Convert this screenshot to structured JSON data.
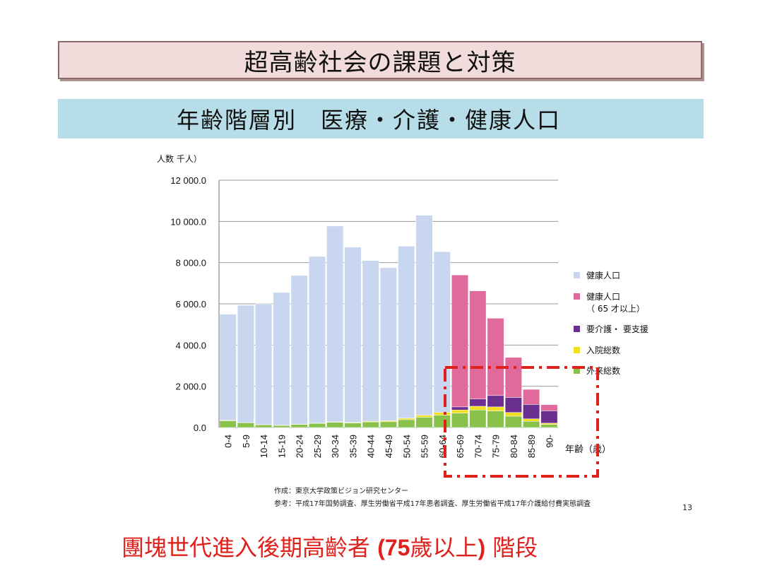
{
  "slide": {
    "title": "超高齢社会の課題と対策",
    "subtitle": "年齢階層別　医療・介護・健康人口",
    "source_line1": "作成：東京大学政策ビジョン研究センター",
    "source_line2": "参考：平成17年国勢調査、厚生労働省平成17年患者調査、厚生労働省平成17年介護給付費実態調査",
    "page_number": "13",
    "caption_pre": "團塊世代進入後期高齡者 ",
    "caption_bold": "(75",
    "caption_mid": "歲以上",
    "caption_bold2": ")",
    "caption_post": " 階段"
  },
  "colors": {
    "healthy": "#c9d6ef",
    "healthy_65": "#e06a9c",
    "care": "#6b2f8f",
    "inpatient": "#f0e020",
    "outpatient": "#88c24a",
    "highlight": "#e0201a"
  },
  "chart_data": {
    "type": "bar",
    "stacked": true,
    "ylabel": "人数 千人）",
    "xlabel": "年齢（歳）",
    "ylim": [
      0,
      12000
    ],
    "yticks": [
      "0.0",
      "2 000.0",
      "4 000.0",
      "6 000.0",
      "8 000.0",
      "10 000.0",
      "12 000.0"
    ],
    "grid": true,
    "legend_position": "right",
    "categories": [
      "0-4",
      "5-9",
      "10-14",
      "15-19",
      "20-24",
      "25-29",
      "30-34",
      "35-39",
      "40-44",
      "45-49",
      "50-54",
      "55-59",
      "60-64",
      "65-69",
      "70-74",
      "75-79",
      "80-84",
      "85-89",
      "90-"
    ],
    "series": [
      {
        "name": "外来総数",
        "color_key": "outpatient",
        "values": [
          330,
          230,
          130,
          100,
          150,
          200,
          250,
          220,
          270,
          280,
          380,
          500,
          600,
          700,
          850,
          800,
          550,
          300,
          150
        ]
      },
      {
        "name": "入院総数",
        "color_key": "inpatient",
        "values": [
          20,
          10,
          10,
          10,
          15,
          20,
          25,
          25,
          35,
          45,
          70,
          100,
          130,
          150,
          180,
          200,
          180,
          120,
          60
        ]
      },
      {
        "name": "要介護・要支援",
        "color_key": "care",
        "values": [
          0,
          0,
          0,
          0,
          0,
          0,
          0,
          0,
          0,
          0,
          0,
          0,
          0,
          150,
          350,
          550,
          730,
          700,
          600
        ]
      },
      {
        "name": "健康人口（65才以上）",
        "color_key": "healthy_65",
        "values": [
          0,
          0,
          0,
          0,
          0,
          0,
          0,
          0,
          0,
          0,
          0,
          0,
          0,
          6400,
          5250,
          3750,
          1940,
          730,
          300
        ]
      },
      {
        "name": "健康人口",
        "color_key": "healthy",
        "values": [
          5150,
          5690,
          5860,
          6440,
          7210,
          8080,
          9500,
          8505,
          7795,
          7425,
          8350,
          9700,
          7800,
          0,
          0,
          0,
          0,
          0,
          0
        ]
      }
    ],
    "legend_order": [
      "健康人口",
      "健康人口\n（ 65 才以上）",
      "要介護・ 要支援",
      "入院総数",
      "外来総数"
    ],
    "legend_keys": [
      "healthy",
      "healthy_65",
      "care",
      "inpatient",
      "outpatient"
    ]
  }
}
